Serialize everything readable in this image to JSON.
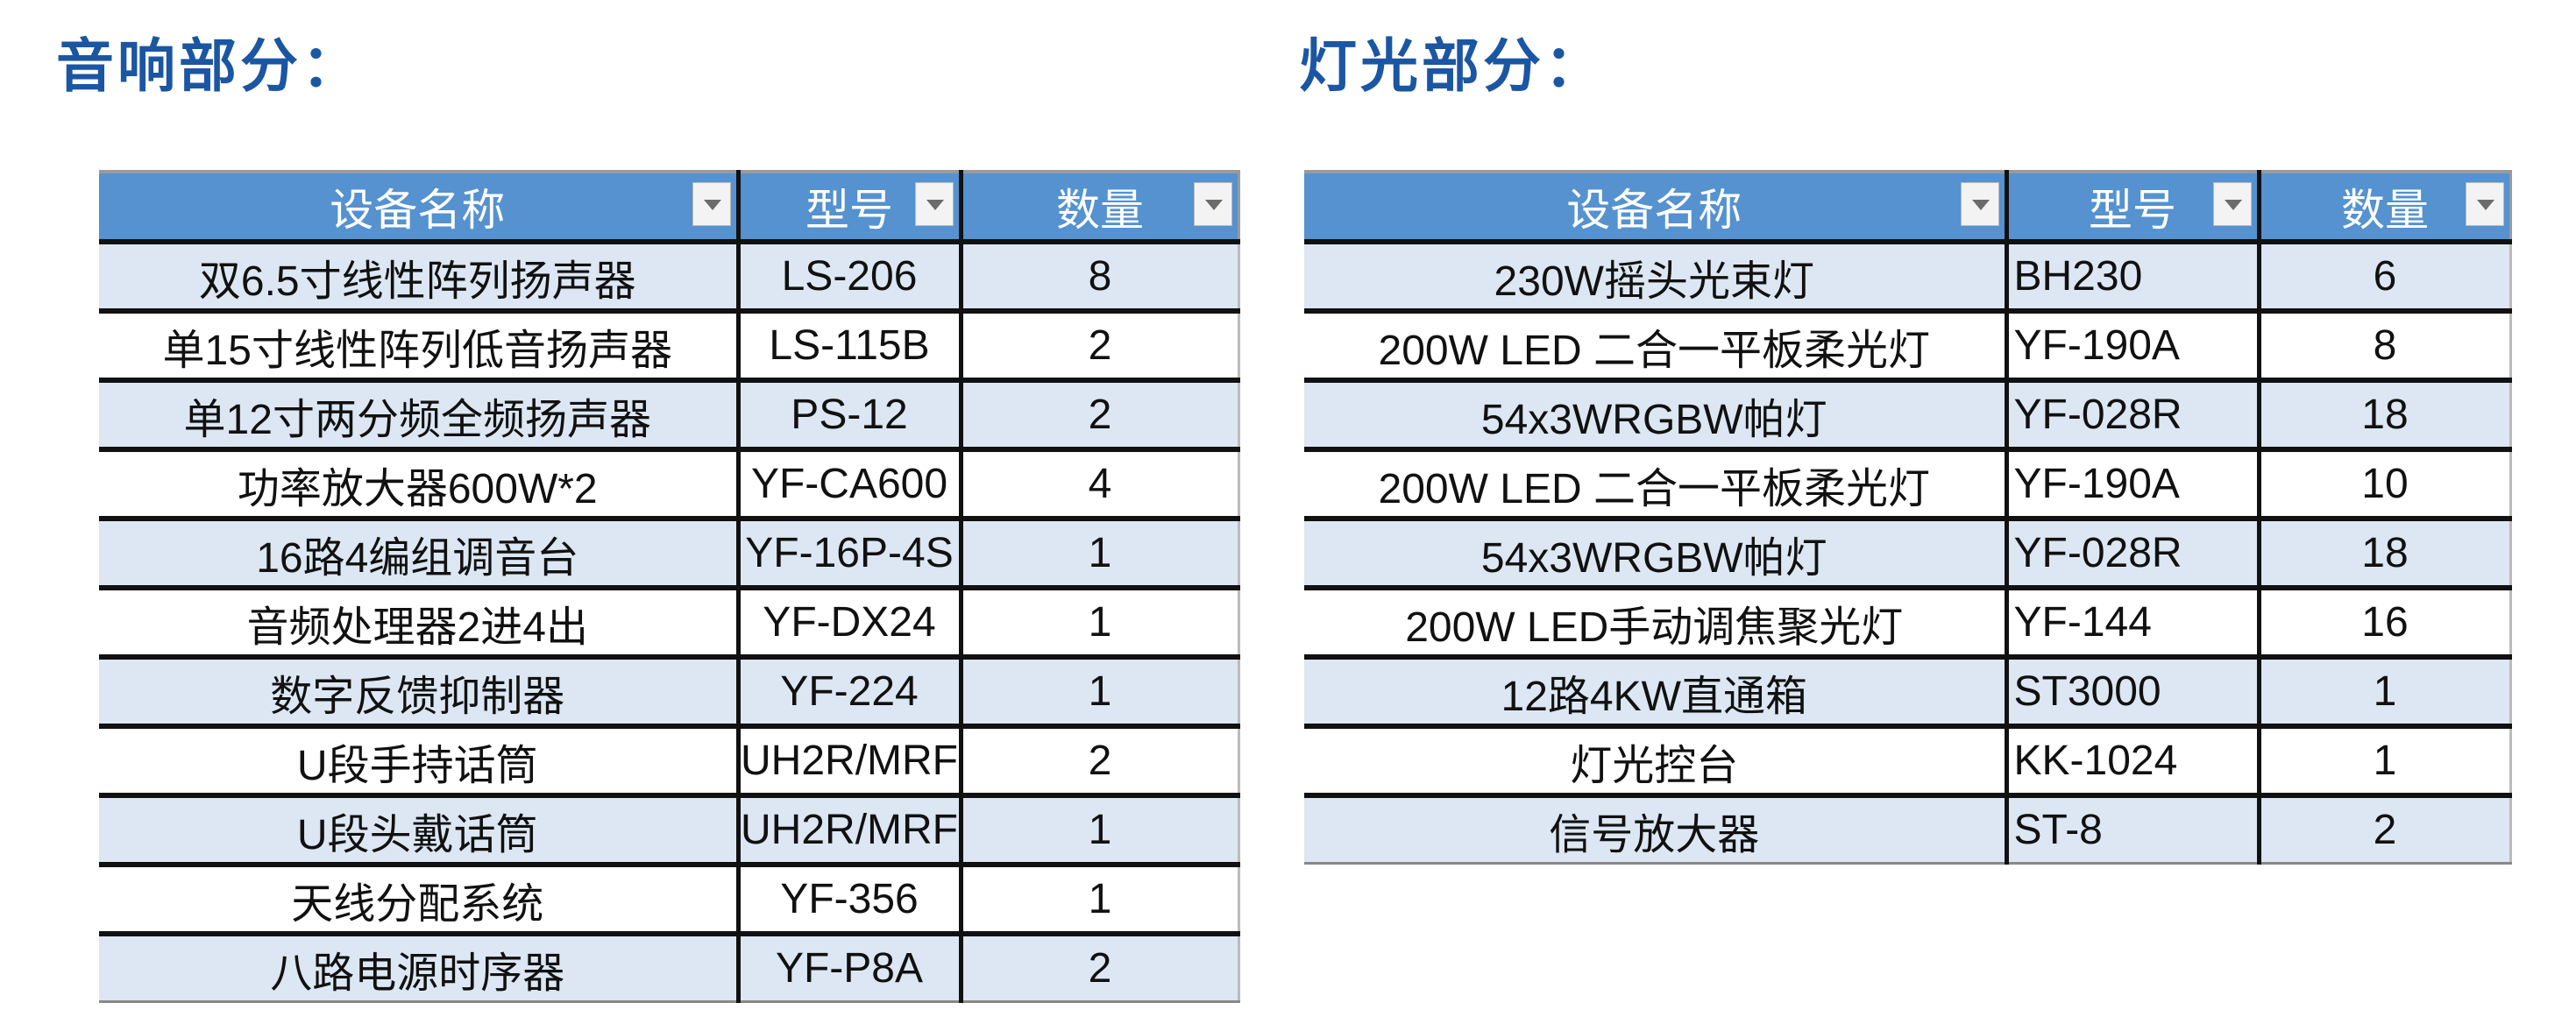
{
  "audio": {
    "title": "音响部分：",
    "headers": [
      "设备名称",
      "型号",
      "数量"
    ],
    "rows": [
      {
        "name": "双6.5寸线性阵列扬声器",
        "model": "LS-206",
        "qty": "8"
      },
      {
        "name": "单15寸线性阵列低音扬声器",
        "model": "LS-115B",
        "qty": "2"
      },
      {
        "name": "单12寸两分频全频扬声器",
        "model": "PS-12",
        "qty": "2"
      },
      {
        "name": "功率放大器600W*2",
        "model": "YF-CA600",
        "qty": "4"
      },
      {
        "name": "16路4编组调音台",
        "model": "YF-16P-4S",
        "qty": "1"
      },
      {
        "name": "音频处理器2进4出",
        "model": "YF-DX24",
        "qty": "1"
      },
      {
        "name": "数字反馈抑制器",
        "model": "YF-224",
        "qty": "1"
      },
      {
        "name": "U段手持话筒",
        "model": "UH2R/MRF",
        "qty": "2"
      },
      {
        "name": "U段头戴话筒",
        "model": "UH2R/MRF",
        "qty": "1"
      },
      {
        "name": "天线分配系统",
        "model": "YF-356",
        "qty": "1"
      },
      {
        "name": "八路电源时序器",
        "model": "YF-P8A",
        "qty": "2"
      }
    ]
  },
  "lighting": {
    "title": "灯光部分：",
    "headers": [
      "设备名称",
      "型号",
      "数量"
    ],
    "rows": [
      {
        "name": "230W摇头光束灯",
        "model": "BH230",
        "qty": "6"
      },
      {
        "name": "200W LED 二合一平板柔光灯",
        "model": "YF-190A",
        "qty": "8"
      },
      {
        "name": "54x3WRGBW帕灯",
        "model": "YF-028R",
        "qty": "18"
      },
      {
        "name": "200W LED 二合一平板柔光灯",
        "model": "YF-190A",
        "qty": "10"
      },
      {
        "name": "54x3WRGBW帕灯",
        "model": "YF-028R",
        "qty": "18"
      },
      {
        "name": "200W LED手动调焦聚光灯",
        "model": "YF-144",
        "qty": "16"
      },
      {
        "name": "12路4KW直通箱",
        "model": "ST3000",
        "qty": "1"
      },
      {
        "name": "灯光控台",
        "model": "KK-1024",
        "qty": "1"
      },
      {
        "name": "信号放大器",
        "model": "ST-8",
        "qty": "2"
      }
    ]
  },
  "colors": {
    "title": "#1b56a3",
    "header_bg": "#5592cf",
    "alt_row": "#dce7f3"
  }
}
